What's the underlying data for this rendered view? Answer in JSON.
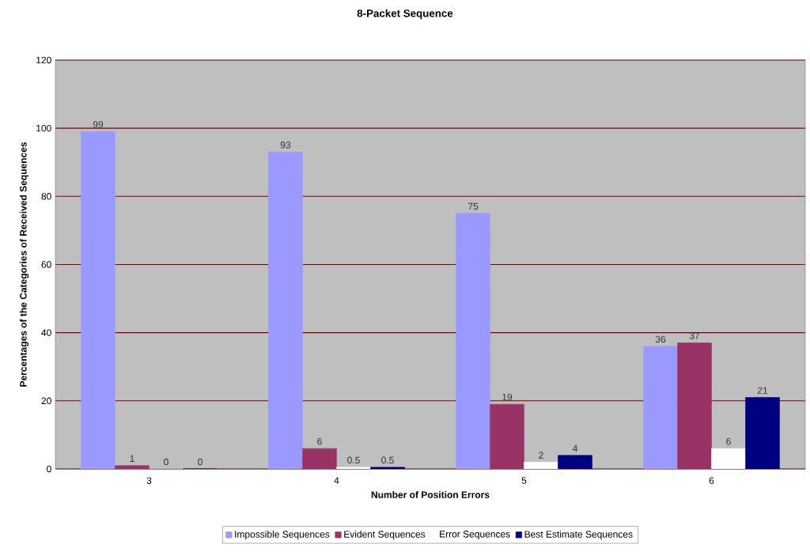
{
  "chart_data": {
    "type": "bar",
    "title": "8-Packet Sequence",
    "xlabel": "Number of Position Errors",
    "ylabel": "Percentages of the Categories of Received Sequences",
    "categories": [
      "3",
      "4",
      "5",
      "6"
    ],
    "series": [
      {
        "name": "Impossible Sequences",
        "color": "#9999ff",
        "values": [
          99,
          93,
          75,
          36
        ]
      },
      {
        "name": "Evident Sequences",
        "color": "#993366",
        "values": [
          1,
          6,
          19,
          37
        ]
      },
      {
        "name": "Error Sequences",
        "color": "#ffffff",
        "values": [
          0,
          0.5,
          2,
          6
        ]
      },
      {
        "name": "Best Estimate Sequences",
        "color": "#000080",
        "values": [
          0,
          0.5,
          4,
          21
        ]
      }
    ],
    "ylim": [
      0,
      120
    ],
    "yticks": [
      0,
      20,
      40,
      60,
      80,
      100,
      120
    ],
    "grid": "y",
    "legend": "bottom",
    "data_labels": true
  }
}
